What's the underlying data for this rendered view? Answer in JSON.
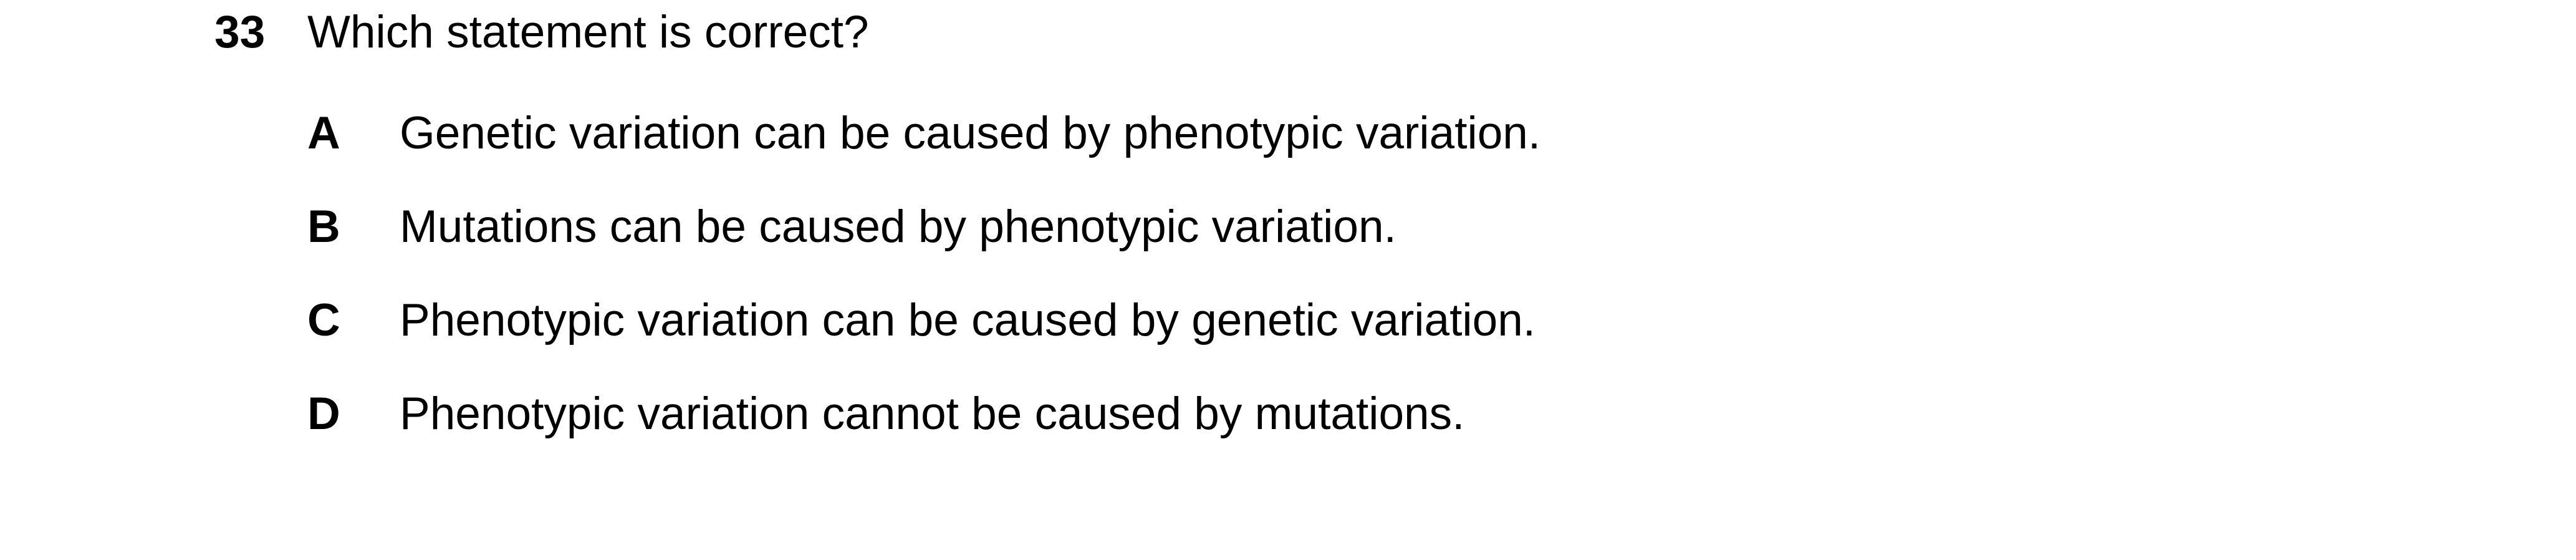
{
  "question": {
    "number": "33",
    "stem": "Which statement is correct?",
    "options": [
      {
        "letter": "A",
        "text": "Genetic variation can be caused by phenotypic variation."
      },
      {
        "letter": "B",
        "text": "Mutations can be caused by phenotypic variation."
      },
      {
        "letter": "C",
        "text": "Phenotypic variation can be caused by genetic variation."
      },
      {
        "letter": "D",
        "text": "Phenotypic variation cannot be caused by mutations."
      }
    ]
  }
}
